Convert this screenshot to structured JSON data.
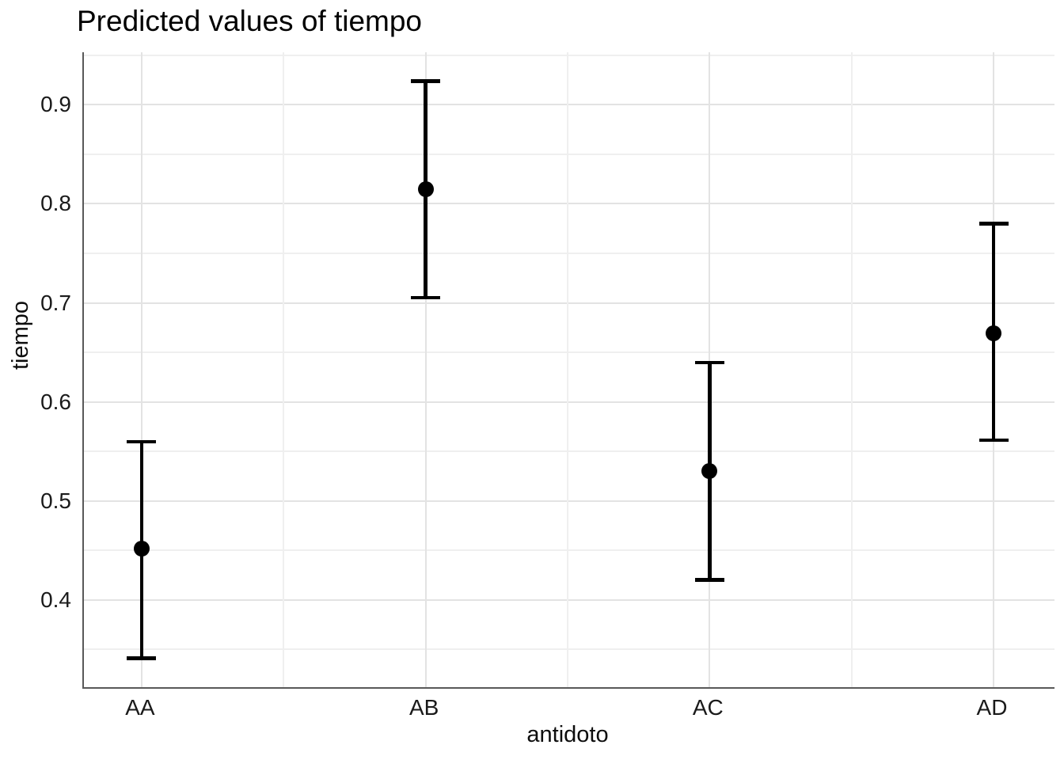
{
  "figure": {
    "background": "#ffffff"
  },
  "chart_data": {
    "type": "pointrange",
    "title": "Predicted values of tiempo",
    "xlabel": "antidoto",
    "ylabel": "tiempo",
    "categories": [
      "AA",
      "AB",
      "AC",
      "AD"
    ],
    "series": [
      {
        "name": "predicted",
        "values": [
          0.452,
          0.815,
          0.53,
          0.669
        ]
      }
    ],
    "conf_low": [
      0.341,
      0.705,
      0.42,
      0.561
    ],
    "conf_high": [
      0.56,
      0.924,
      0.64,
      0.78
    ],
    "points": [
      {
        "category": "AA",
        "predicted": 0.452,
        "conf_low": 0.341,
        "conf_high": 0.56
      },
      {
        "category": "AB",
        "predicted": 0.815,
        "conf_low": 0.705,
        "conf_high": 0.924
      },
      {
        "category": "AC",
        "predicted": 0.53,
        "conf_low": 0.42,
        "conf_high": 0.64
      },
      {
        "category": "AD",
        "predicted": 0.669,
        "conf_low": 0.561,
        "conf_high": 0.78
      }
    ],
    "ytick_labels": [
      "0.4",
      "0.5",
      "0.6",
      "0.7",
      "0.8",
      "0.9"
    ],
    "yticks": [
      0.4,
      0.5,
      0.6,
      0.7,
      0.8,
      0.9
    ],
    "yticks_minor": [
      0.35,
      0.45,
      0.55,
      0.65,
      0.75,
      0.85,
      0.95
    ],
    "ylim": [
      0.312,
      0.953
    ],
    "grid": true,
    "legend": "none",
    "colors": {
      "point": "#000000",
      "errorbar": "#000000",
      "grid_major": "#e3e3e3",
      "grid_minor": "#efefef",
      "axis_line": "#595959",
      "tick_text": "#1a1a1a",
      "title_text": "#000000"
    }
  }
}
